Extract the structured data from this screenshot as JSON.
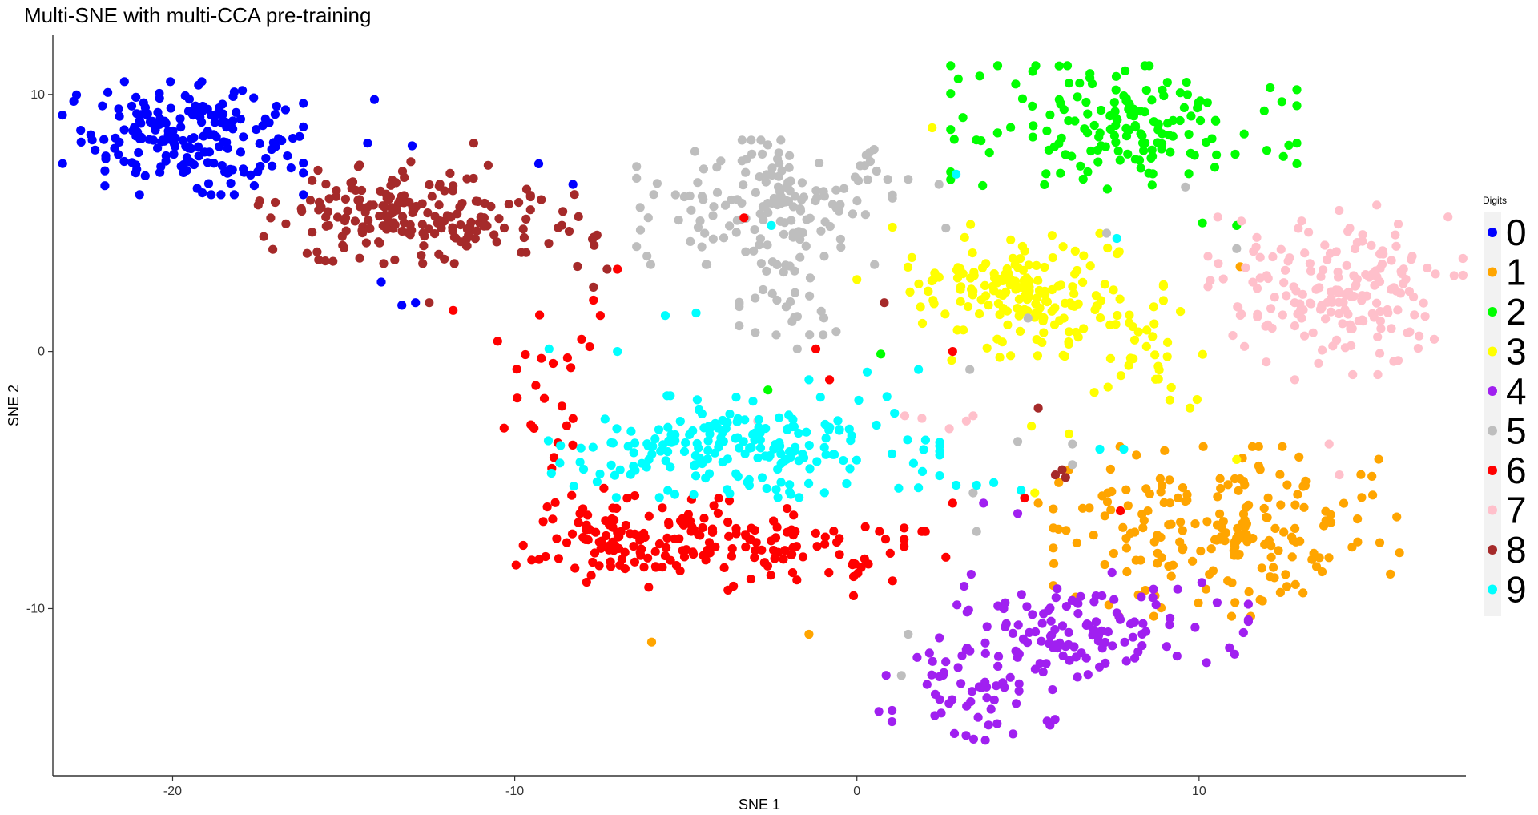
{
  "chart_data": {
    "type": "scatter",
    "title": "Multi-SNE with multi-CCA pre-training",
    "xlabel": "SNE 1",
    "ylabel": "SNE 2",
    "xlim": [
      -23.5,
      17.8
    ],
    "ylim": [
      -16.5,
      12.3
    ],
    "x_ticks": [
      -20,
      -10,
      0,
      10
    ],
    "y_ticks": [
      -10,
      0,
      10
    ],
    "grid": false,
    "legend": {
      "title": "Digits",
      "placement": "right",
      "entries": [
        "0",
        "1",
        "2",
        "3",
        "4",
        "5",
        "6",
        "7",
        "8",
        "9"
      ]
    },
    "series": [
      {
        "name": "0",
        "color": "#0000FF",
        "clusters": [
          {
            "cx": -19.7,
            "cy": 8.3,
            "sx": 1.6,
            "sy": 1.0,
            "n": 190
          }
        ],
        "points": [
          [
            -14.3,
            8.1
          ],
          [
            -13.0,
            8.0
          ],
          [
            -9.3,
            7.3
          ],
          [
            -8.3,
            6.5
          ],
          [
            -13.9,
            2.7
          ],
          [
            -13.3,
            1.8
          ],
          [
            -12.9,
            1.9
          ],
          [
            -14.1,
            9.8
          ],
          [
            -16.7,
            9.4
          ]
        ]
      },
      {
        "name": "1",
        "color": "#FFA500",
        "clusters": [
          {
            "cx": 10.8,
            "cy": -7.0,
            "sx": 2.3,
            "sy": 1.5,
            "n": 200
          }
        ],
        "points": [
          [
            -6.0,
            -11.3
          ],
          [
            -1.4,
            -11.0
          ],
          [
            5.9,
            -5.1
          ],
          [
            6.2,
            -4.6
          ],
          [
            6.6,
            -6.1
          ],
          [
            5.3,
            -5.9
          ],
          [
            11.2,
            3.3
          ]
        ]
      },
      {
        "name": "2",
        "color": "#00FF00",
        "clusters": [
          {
            "cx": 7.8,
            "cy": 8.7,
            "sx": 2.3,
            "sy": 1.1,
            "n": 160
          }
        ],
        "points": [
          [
            -2.6,
            -1.5
          ],
          [
            0.7,
            -0.1
          ],
          [
            10.1,
            5.0
          ],
          [
            11.1,
            4.9
          ],
          [
            3.1,
            9.1
          ]
        ]
      },
      {
        "name": "3",
        "color": "#FFFF00",
        "clusters": [
          {
            "cx": 5.0,
            "cy": 2.3,
            "sx": 1.8,
            "sy": 1.2,
            "n": 175
          },
          {
            "cx": 8.7,
            "cy": 0.0,
            "sx": 0.9,
            "sy": 1.0,
            "n": 30
          }
        ],
        "points": [
          [
            2.2,
            8.7
          ],
          [
            5.2,
            -5.5
          ],
          [
            6.2,
            -3.2
          ],
          [
            11.1,
            -4.2
          ],
          [
            0.0,
            2.8
          ],
          [
            5.1,
            -2.9
          ]
        ]
      },
      {
        "name": "4",
        "color": "#A020F0",
        "clusters": [
          {
            "cx": 6.6,
            "cy": -10.8,
            "sx": 2.2,
            "sy": 1.0,
            "n": 120
          },
          {
            "cx": 3.5,
            "cy": -13.2,
            "sx": 1.3,
            "sy": 1.0,
            "n": 55
          }
        ],
        "points": [
          [
            3.7,
            -5.9
          ],
          [
            4.7,
            -6.3
          ]
        ]
      },
      {
        "name": "5",
        "color": "#BEBEBE",
        "clusters": [
          {
            "cx": -2.7,
            "cy": 5.8,
            "sx": 1.7,
            "sy": 1.1,
            "n": 150
          },
          {
            "cx": -1.9,
            "cy": 2.3,
            "sx": 0.7,
            "sy": 1.0,
            "n": 35
          }
        ],
        "points": [
          [
            1.5,
            -11.0
          ],
          [
            1.3,
            -12.6
          ],
          [
            2.6,
            4.8
          ],
          [
            6.3,
            -4.4
          ],
          [
            11.1,
            4.0
          ],
          [
            5.0,
            1.3
          ],
          [
            9.6,
            6.4
          ],
          [
            3.5,
            -7.0
          ],
          [
            3.4,
            -5.5
          ],
          [
            0.9,
            6.7
          ],
          [
            2.4,
            6.5
          ],
          [
            7.3,
            4.6
          ],
          [
            3.3,
            -0.7
          ],
          [
            4.7,
            -3.5
          ],
          [
            6.3,
            -3.6
          ],
          [
            1.5,
            6.7
          ]
        ]
      },
      {
        "name": "6",
        "color": "#FF0000",
        "clusters": [
          {
            "cx": -6.0,
            "cy": -7.3,
            "sx": 1.8,
            "sy": 0.9,
            "n": 145
          },
          {
            "cx": -1.7,
            "cy": -7.6,
            "sx": 1.4,
            "sy": 0.6,
            "n": 55
          },
          {
            "cx": -9.1,
            "cy": -1.6,
            "sx": 0.7,
            "sy": 1.4,
            "n": 22
          }
        ],
        "points": [
          [
            -11.8,
            1.6
          ],
          [
            -10.5,
            0.4
          ],
          [
            -7.7,
            2.0
          ],
          [
            -7.5,
            1.4
          ],
          [
            -7.0,
            3.2
          ],
          [
            -3.3,
            5.2
          ],
          [
            2.6,
            -8.0
          ],
          [
            2.8,
            -5.9
          ],
          [
            1.9,
            -7.0
          ],
          [
            2.0,
            -7.0
          ],
          [
            -1.2,
            0.1
          ],
          [
            2.8,
            0.0
          ],
          [
            7.7,
            -6.2
          ],
          [
            -0.1,
            -9.5
          ],
          [
            4.9,
            -5.7
          ],
          [
            -0.8,
            -1.1
          ]
        ]
      },
      {
        "name": "7",
        "color": "#FFC0CB",
        "clusters": [
          {
            "cx": 14.0,
            "cy": 2.4,
            "sx": 1.7,
            "sy": 1.5,
            "n": 180
          }
        ],
        "points": [
          [
            1.4,
            -2.5
          ],
          [
            1.9,
            -2.6
          ],
          [
            2.7,
            -3.0
          ],
          [
            3.2,
            -2.7
          ],
          [
            3.4,
            -2.5
          ],
          [
            -5.5,
            -3.5
          ],
          [
            -2.9,
            -2.7
          ],
          [
            13.8,
            -3.6
          ],
          [
            14.1,
            -4.8
          ],
          [
            12.8,
            -1.1
          ]
        ]
      },
      {
        "name": "8",
        "color": "#A52A2A",
        "clusters": [
          {
            "cx": -13.5,
            "cy": 5.4,
            "sx": 1.8,
            "sy": 0.9,
            "n": 175
          },
          {
            "cx": -9.4,
            "cy": 4.8,
            "sx": 1.2,
            "sy": 0.8,
            "n": 25
          }
        ],
        "points": [
          [
            -17.0,
            5.8
          ],
          [
            -17.5,
            5.7
          ],
          [
            -11.2,
            8.1
          ],
          [
            -12.5,
            1.9
          ],
          [
            -7.7,
            2.5
          ],
          [
            -7.3,
            3.2
          ],
          [
            0.8,
            1.9
          ],
          [
            5.3,
            -2.2
          ],
          [
            6.0,
            -4.6
          ],
          [
            5.8,
            -4.8
          ],
          [
            6.1,
            -4.9
          ]
        ]
      },
      {
        "name": "9",
        "color": "#00FFFF",
        "clusters": [
          {
            "cx": -3.3,
            "cy": -3.7,
            "sx": 2.6,
            "sy": 0.9,
            "n": 200
          }
        ],
        "points": [
          [
            -9.0,
            0.1
          ],
          [
            -7.0,
            0.0
          ],
          [
            -5.6,
            1.4
          ],
          [
            -4.7,
            1.5
          ],
          [
            -1.4,
            -1.1
          ],
          [
            1.1,
            -2.4
          ],
          [
            1.8,
            -0.7
          ],
          [
            1.8,
            -5.3
          ],
          [
            2.9,
            -5.2
          ],
          [
            3.5,
            -5.2
          ],
          [
            4.0,
            -5.1
          ],
          [
            4.8,
            -5.4
          ],
          [
            7.6,
            4.4
          ],
          [
            7.8,
            -3.8
          ],
          [
            7.1,
            -3.8
          ],
          [
            2.9,
            6.9
          ],
          [
            -2.5,
            4.9
          ],
          [
            0.3,
            -0.8
          ]
        ]
      }
    ]
  }
}
